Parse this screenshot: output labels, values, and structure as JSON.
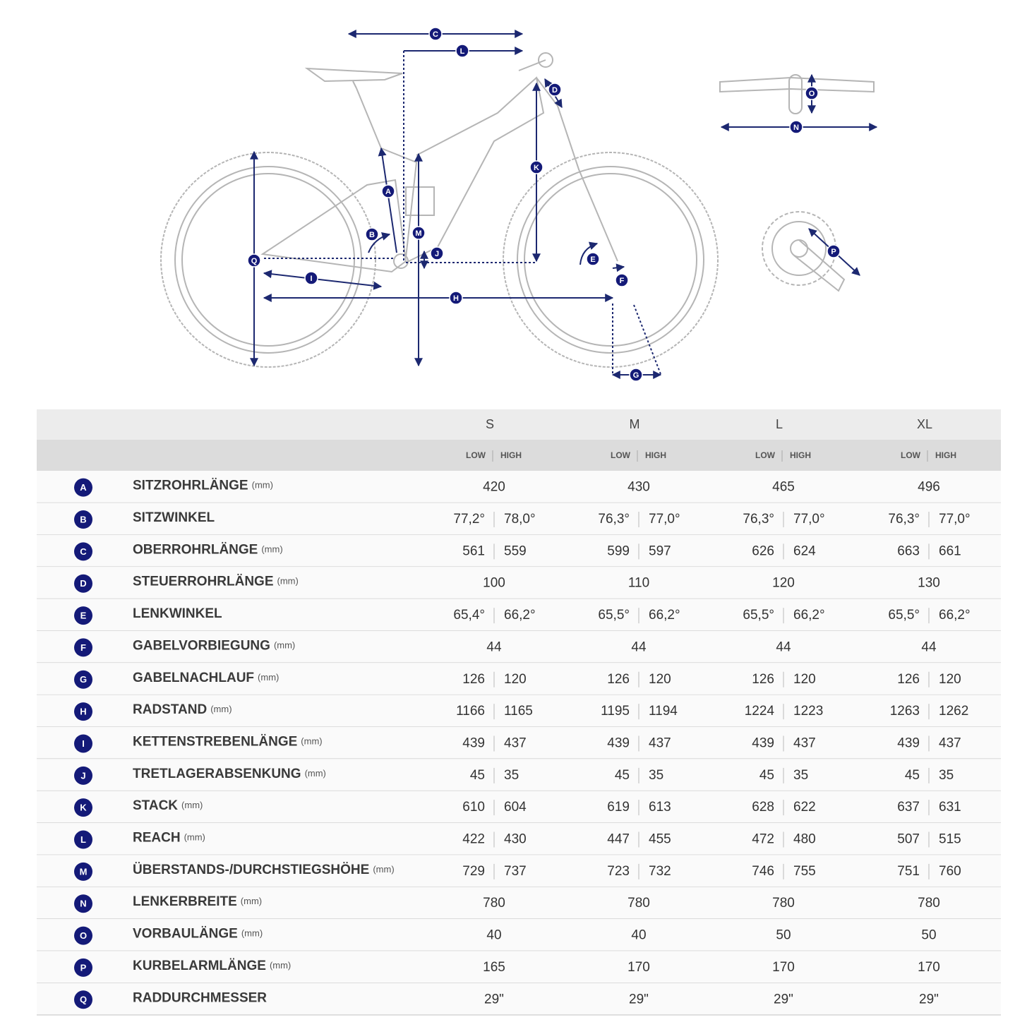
{
  "table": {
    "sizes": [
      "S",
      "M",
      "L",
      "XL"
    ],
    "low": "LOW",
    "high": "HIGH",
    "rows": [
      {
        "letter": "A",
        "name": "SITZROHRLÄNGE",
        "unit": "(mm)",
        "values": [
          "420",
          "430",
          "465",
          "496"
        ]
      },
      {
        "letter": "B",
        "name": "SITZWINKEL",
        "values": [
          [
            "77,2°",
            "78,0°"
          ],
          [
            "76,3°",
            "77,0°"
          ],
          [
            "76,3°",
            "77,0°"
          ],
          [
            "76,3°",
            "77,0°"
          ]
        ]
      },
      {
        "letter": "C",
        "name": "OBERROHRLÄNGE",
        "unit": "(mm)",
        "values": [
          [
            "561",
            "559"
          ],
          [
            "599",
            "597"
          ],
          [
            "626",
            "624"
          ],
          [
            "663",
            "661"
          ]
        ]
      },
      {
        "letter": "D",
        "name": "STEUERROHRLÄNGE",
        "unit": "(mm)",
        "values": [
          "100",
          "110",
          "120",
          "130"
        ]
      },
      {
        "letter": "E",
        "name": "LENKWINKEL",
        "values": [
          [
            "65,4°",
            "66,2°"
          ],
          [
            "65,5°",
            "66,2°"
          ],
          [
            "65,5°",
            "66,2°"
          ],
          [
            "65,5°",
            "66,2°"
          ]
        ]
      },
      {
        "letter": "F",
        "name": "GABELVORBIEGUNG",
        "unit": "(mm)",
        "values": [
          "44",
          "44",
          "44",
          "44"
        ]
      },
      {
        "letter": "G",
        "name": "GABELNACHLAUF",
        "unit": "(mm)",
        "values": [
          [
            "126",
            "120"
          ],
          [
            "126",
            "120"
          ],
          [
            "126",
            "120"
          ],
          [
            "126",
            "120"
          ]
        ]
      },
      {
        "letter": "H",
        "name": "RADSTAND",
        "unit": "(mm)",
        "values": [
          [
            "1166",
            "1165"
          ],
          [
            "1195",
            "1194"
          ],
          [
            "1224",
            "1223"
          ],
          [
            "1263",
            "1262"
          ]
        ]
      },
      {
        "letter": "I",
        "name": "KETTENSTREBENLÄNGE",
        "unit": "(mm)",
        "values": [
          [
            "439",
            "437"
          ],
          [
            "439",
            "437"
          ],
          [
            "439",
            "437"
          ],
          [
            "439",
            "437"
          ]
        ]
      },
      {
        "letter": "J",
        "name": "TRETLAGERABSENKUNG",
        "unit": "(mm)",
        "values": [
          [
            "45",
            "35"
          ],
          [
            "45",
            "35"
          ],
          [
            "45",
            "35"
          ],
          [
            "45",
            "35"
          ]
        ]
      },
      {
        "letter": "K",
        "name": "STACK",
        "unit": "(mm)",
        "values": [
          [
            "610",
            "604"
          ],
          [
            "619",
            "613"
          ],
          [
            "628",
            "622"
          ],
          [
            "637",
            "631"
          ]
        ]
      },
      {
        "letter": "L",
        "name": "REACH",
        "unit": "(mm)",
        "values": [
          [
            "422",
            "430"
          ],
          [
            "447",
            "455"
          ],
          [
            "472",
            "480"
          ],
          [
            "507",
            "515"
          ]
        ]
      },
      {
        "letter": "M",
        "name": "ÜBERSTANDS-/DURCHSTIEGSHÖHE",
        "unit": "(mm)",
        "values": [
          [
            "729",
            "737"
          ],
          [
            "723",
            "732"
          ],
          [
            "746",
            "755"
          ],
          [
            "751",
            "760"
          ]
        ]
      },
      {
        "letter": "N",
        "name": "LENKERBREITE",
        "unit": "(mm)",
        "values": [
          "780",
          "780",
          "780",
          "780"
        ]
      },
      {
        "letter": "O",
        "name": "VORBAULÄNGE",
        "unit": "(mm)",
        "values": [
          "40",
          "40",
          "50",
          "50"
        ]
      },
      {
        "letter": "P",
        "name": "KURBELARMLÄNGE",
        "unit": "(mm)",
        "values": [
          "165",
          "170",
          "170",
          "170"
        ]
      },
      {
        "letter": "Q",
        "name": "RADDURCHMESSER",
        "values": [
          "29\"",
          "29\"",
          "29\"",
          "29\""
        ]
      }
    ]
  }
}
